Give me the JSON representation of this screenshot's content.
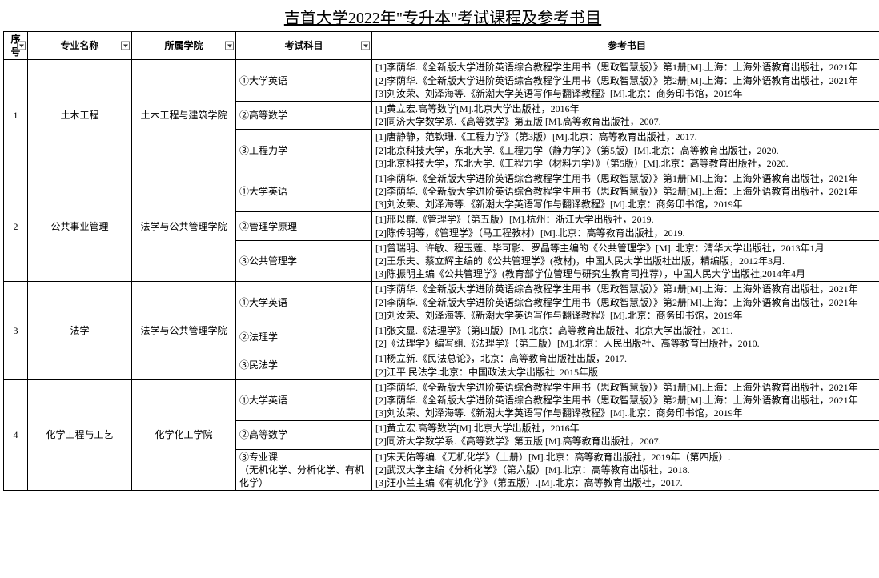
{
  "title": "吉首大学2022年\"专升本\"考试课程及参考书目",
  "headers": {
    "idx": "序号",
    "major": "专业名称",
    "dept": "所属学院",
    "subject": "考试科目",
    "ref": "参考书目"
  },
  "rows": [
    {
      "idx": "1",
      "major": "土木工程",
      "dept": "土木工程与建筑学院",
      "subjects": [
        {
          "name": "①大学英语",
          "refs": [
            "[1]李荫华.《全新版大学进阶英语综合教程学生用书（思政智慧版）》第1册[M].上海：上海外语教育出版社，2021年",
            "[2]李荫华.《全新版大学进阶英语综合教程学生用书（思政智慧版）》第2册[M].上海：上海外语教育出版社，2021年",
            "[3]刘汝荣、刘泽海等.《新潮大学英语写作与翻译教程》[M].北京：商务印书馆，2019年"
          ]
        },
        {
          "name": "②高等数学",
          "refs": [
            "[1]黄立宏.高等数学[M].北京大学出版社，2016年",
            "[2]同济大学数学系.《高等数学》第五版 [M].高等教育出版社，2007."
          ]
        },
        {
          "name": "③工程力学",
          "refs": [
            "[1]唐静静，范钦珊.《工程力学》（第3版）[M].北京：高等教育出版社，2017.",
            "[2]北京科技大学，东北大学.《工程力学（静力学）》（第5版）[M].北京：高等教育出版社，2020.",
            "[3]北京科技大学，东北大学.《工程力学（材料力学）》（第5版）[M].北京：高等教育出版社，2020."
          ]
        }
      ]
    },
    {
      "idx": "2",
      "major": "公共事业管理",
      "dept": "法学与公共管理学院",
      "subjects": [
        {
          "name": "①大学英语",
          "refs": [
            "[1]李荫华.《全新版大学进阶英语综合教程学生用书（思政智慧版）》第1册[M].上海：上海外语教育出版社，2021年",
            "[2]李荫华.《全新版大学进阶英语综合教程学生用书（思政智慧版）》第2册[M].上海：上海外语教育出版社，2021年",
            "[3]刘汝荣、刘泽海等.《新潮大学英语写作与翻译教程》[M].北京：商务印书馆，2019年"
          ]
        },
        {
          "name": "②管理学原理",
          "refs": [
            "[1]邢以群.《管理学》（第五版）[M].杭州：浙江大学出版社，2019.",
            "[2]陈传明等，《管理学》（马工程教材）[M].北京：高等教育出版社，2019."
          ]
        },
        {
          "name": "③公共管理学",
          "refs": [
            "[1]曾瑞明、许敏、程玉莲、毕可影、罗晶等主编的《公共管理学》[M]. 北京：清华大学出版社，2013年1月",
            "[2]王乐夫、蔡立辉主编的《公共管理学》(教材)，中国人民大学出版社出版，精编版，2012年3月.",
            "[3]陈振明主编《公共管理学》(教育部学位管理与研究生教育司推荐），中国人民大学出版社,2014年4月"
          ]
        }
      ]
    },
    {
      "idx": "3",
      "major": "法学",
      "dept": "法学与公共管理学院",
      "subjects": [
        {
          "name": "①大学英语",
          "refs": [
            "[1]李荫华.《全新版大学进阶英语综合教程学生用书（思政智慧版）》第1册[M].上海：上海外语教育出版社，2021年",
            "[2]李荫华.《全新版大学进阶英语综合教程学生用书（思政智慧版）》第2册[M].上海：上海外语教育出版社，2021年",
            "[3]刘汝荣、刘泽海等.《新潮大学英语写作与翻译教程》[M].北京：商务印书馆，2019年"
          ]
        },
        {
          "name": "②法理学",
          "refs": [
            "[1]张文显.《法理学》（第四版）[M]. 北京：高等教育出版社、北京大学出版社，2011.",
            "[2]《法理学》编写组.《法理学》（第三版）[M].北京：人民出版社、高等教育出版社，2010."
          ]
        },
        {
          "name": "③民法学",
          "refs": [
            "[1]杨立新.《民法总论》，北京：高等教育出版社出版，2017.",
            "[2]江平.民法学.北京：中国政法大学出版社. 2015年版"
          ]
        }
      ]
    },
    {
      "idx": "4",
      "major": "化学工程与工艺",
      "dept": "化学化工学院",
      "subjects": [
        {
          "name": "①大学英语",
          "refs": [
            "[1]李荫华.《全新版大学进阶英语综合教程学生用书（思政智慧版）》第1册[M].上海：上海外语教育出版社，2021年",
            "[2]李荫华.《全新版大学进阶英语综合教程学生用书（思政智慧版）》第2册[M].上海：上海外语教育出版社，2021年",
            "[3]刘汝荣、刘泽海等.《新潮大学英语写作与翻译教程》[M].北京：商务印书馆，2019年"
          ]
        },
        {
          "name": "②高等数学",
          "refs": [
            "[1]黄立宏.高等数学[M].北京大学出版社，2016年",
            "[2]同济大学数学系.《高等数学》第五版 [M].高等教育出版社，2007."
          ]
        },
        {
          "name": "③专业课\n（无机化学、分析化学、有机化学）",
          "refs": [
            "[1]宋天佑等编.《无机化学》（上册）[M].北京：高等教育出版社，2019年（第四版）.",
            "[2]武汉大学主编《分析化学》（第六版）[M].北京：高等教育出版社，2018.",
            "[3]汪小兰主编《有机化学》（第五版）.[M].北京：高等教育出版社，2017."
          ]
        }
      ]
    }
  ]
}
